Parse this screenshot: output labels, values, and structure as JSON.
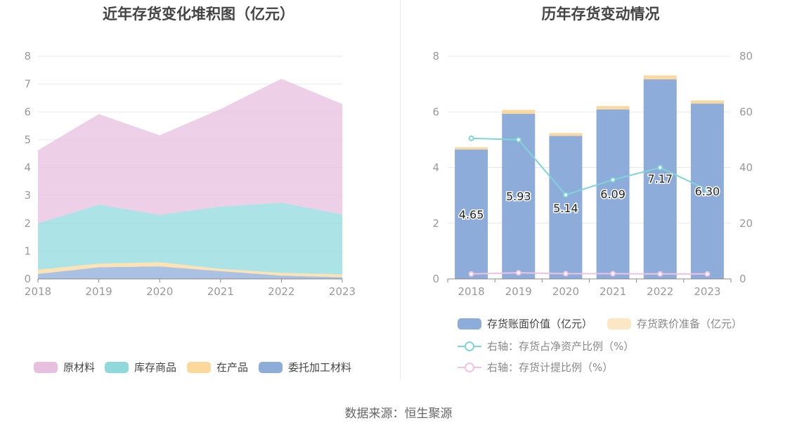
{
  "source_text": "数据来源：恒生聚源",
  "chart_data": [
    {
      "type": "area",
      "title": "近年存货变化堆积图（亿元）",
      "categories": [
        "2018",
        "2019",
        "2020",
        "2021",
        "2022",
        "2023"
      ],
      "y_ticks": [
        "0",
        "1",
        "2",
        "3",
        "4",
        "5",
        "6",
        "7",
        "8"
      ],
      "ylim": [
        0,
        8
      ],
      "stacked": true,
      "series": [
        {
          "name": "委托加工材料",
          "color": "#8eacda",
          "values": [
            0.18,
            0.42,
            0.45,
            0.28,
            0.12,
            0.06
          ]
        },
        {
          "name": "在产品",
          "color": "#fcd89b",
          "values": [
            0.15,
            0.13,
            0.15,
            0.08,
            0.1,
            0.1
          ]
        },
        {
          "name": "库存商品",
          "color": "#8fd9dd",
          "values": [
            1.67,
            2.12,
            1.7,
            2.24,
            2.52,
            2.16
          ]
        },
        {
          "name": "原材料",
          "color": "#e7bfdf",
          "values": [
            2.62,
            3.25,
            2.86,
            3.5,
            4.45,
            3.96
          ]
        }
      ],
      "legend_position": "bottom"
    },
    {
      "type": "bar",
      "title": "历年存货变动情况",
      "categories": [
        "2018",
        "2019",
        "2020",
        "2021",
        "2022",
        "2023"
      ],
      "y_ticks": [
        "0",
        "2",
        "4",
        "6",
        "8"
      ],
      "y2_ticks": [
        "0",
        "20",
        "40",
        "60",
        "80"
      ],
      "ylim": [
        0,
        8
      ],
      "y2lim": [
        0,
        80
      ],
      "series": [
        {
          "name": "存货账面价值（亿元）",
          "kind": "bar",
          "color": "#8eacda",
          "values": [
            4.65,
            5.93,
            5.14,
            6.09,
            7.17,
            6.3
          ],
          "labels": [
            "4.65",
            "5.93",
            "5.14",
            "6.09",
            "7.17",
            "6.30"
          ]
        },
        {
          "name": "存货跌价准备（亿元）",
          "kind": "bar",
          "color": "#fde6c4",
          "values": [
            0.08,
            0.14,
            0.1,
            0.12,
            0.14,
            0.11
          ]
        },
        {
          "name": "右轴：存货占净资产比例（%）",
          "kind": "line",
          "axis": "right",
          "color": "#7fd4d8",
          "values": [
            50.5,
            50.0,
            30.2,
            35.6,
            40.0,
            32.0
          ]
        },
        {
          "name": "右轴：存货计提比例（%）",
          "kind": "line",
          "axis": "right",
          "color": "#efc3e2",
          "values": [
            1.8,
            2.2,
            1.9,
            1.9,
            1.8,
            1.8
          ]
        }
      ],
      "legend_position": "bottom"
    }
  ]
}
